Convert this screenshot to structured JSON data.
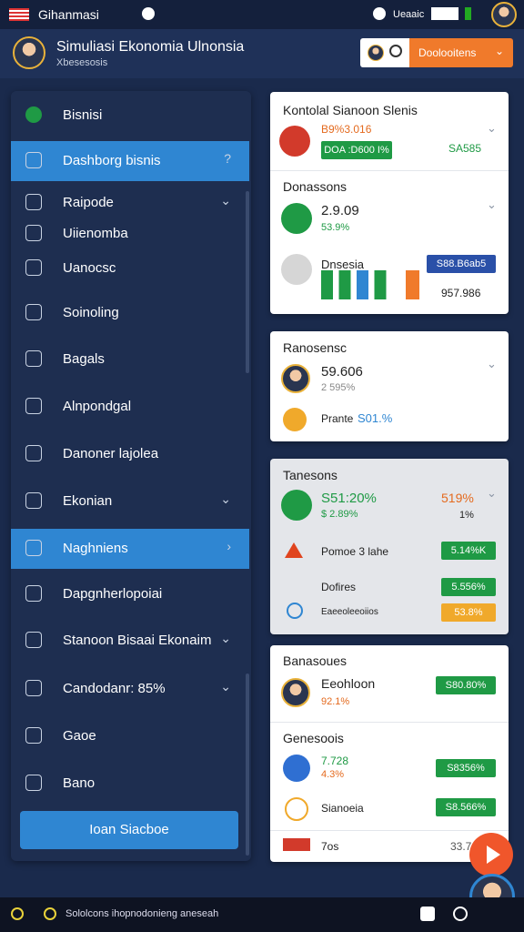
{
  "status_bar": {
    "app": "Gihanmasi",
    "right": "Ueaaic"
  },
  "header": {
    "title": "Simuliasi Ekonomia Ulnonsia",
    "subtitle": "Xbesesosis",
    "button": "Doolooitens"
  },
  "sidebar": {
    "items": [
      "Bisnisi",
      "Dashborg bisnis",
      "Raipode",
      "Uiienomba",
      "Uanocsc",
      "Soinoling",
      "Bagals",
      "Alnpondgal",
      "Danoner lajolea",
      "Ekonian",
      "Naghniens",
      "Dapgnherlopoiai",
      "Stanoon Bisaai Ekonaim",
      "Candodanr: 85%",
      "Gaoe",
      "Bano"
    ],
    "button": "Ioan Siacboe"
  },
  "cards": [
    {
      "title": "Kontolal Sianoon Slenis",
      "value": "B9%3.016",
      "badge": "DOA :D600 I%",
      "side": "SA585",
      "section": "Donassons",
      "value2": "2.9.09",
      "change2": "53.9%",
      "label3": "Dnsesia",
      "badge3": "S88.B6ab5",
      "value3": "957.986"
    },
    {
      "title": "Ranosensc",
      "value": "59.606",
      "change": "2 595%",
      "label2": "Prante",
      "value2": "S01.%"
    },
    {
      "title": "Tanesons",
      "value": "S51:20%",
      "change": "$ 2.89%",
      "side": "519%",
      "side2": "1%",
      "rows": [
        [
          "Pomoe 3 lahe",
          "5.14%K"
        ],
        [
          "Dofires",
          "5.556%"
        ],
        [
          "Eaeeoleeoiios",
          "53.8%"
        ]
      ]
    },
    {
      "title": "Banasoues",
      "label": "Eeohloon",
      "change": "92.1%",
      "badge": "S80.80%",
      "section": "Genesoois",
      "value2": "7.728",
      "change2": "4.3%",
      "badge2": "S8356%",
      "label3": "Sianoeia",
      "badge3": "S8.566%",
      "label4": "7os",
      "value4": "33.7"
    }
  ],
  "bottom_bar": "Sololcons ihopnodonieng aneseah"
}
